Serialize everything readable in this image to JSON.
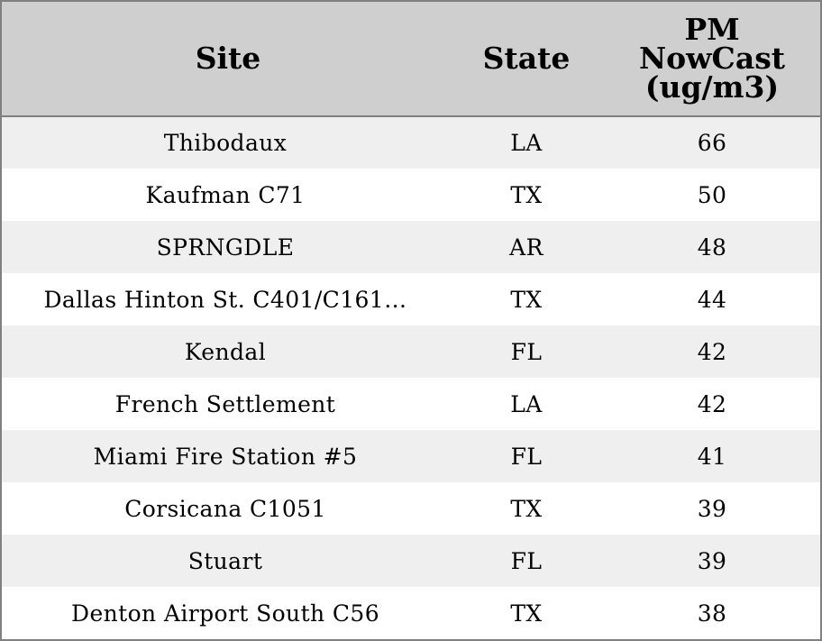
{
  "chart_data": {
    "type": "table",
    "columns": [
      "Site",
      "State",
      "PM NowCast (ug/m3)"
    ],
    "header_lines": {
      "site": "Site",
      "state": "State",
      "pm": [
        "PM",
        "NowCast",
        "(ug/m3)"
      ]
    },
    "rows": [
      {
        "site": "Thibodaux",
        "state": "LA",
        "pm": "66"
      },
      {
        "site": "Kaufman C71",
        "state": "TX",
        "pm": "50"
      },
      {
        "site": "SPRNGDLE",
        "state": "AR",
        "pm": "48"
      },
      {
        "site": "Dallas Hinton St. C401/C161…",
        "state": "TX",
        "pm": "44"
      },
      {
        "site": "Kendal",
        "state": "FL",
        "pm": "42"
      },
      {
        "site": "French Settlement",
        "state": "LA",
        "pm": "42"
      },
      {
        "site": "Miami Fire Station #5",
        "state": "FL",
        "pm": "41"
      },
      {
        "site": "Corsicana C1051",
        "state": "TX",
        "pm": "39"
      },
      {
        "site": "Stuart",
        "state": "FL",
        "pm": "39"
      },
      {
        "site": "Denton Airport South C56",
        "state": "TX",
        "pm": "38"
      }
    ],
    "colors": {
      "header_bg": "#cfcfcf",
      "row_alt_bg": "#efefef",
      "row_bg": "#ffffff",
      "border": "#808080"
    }
  }
}
